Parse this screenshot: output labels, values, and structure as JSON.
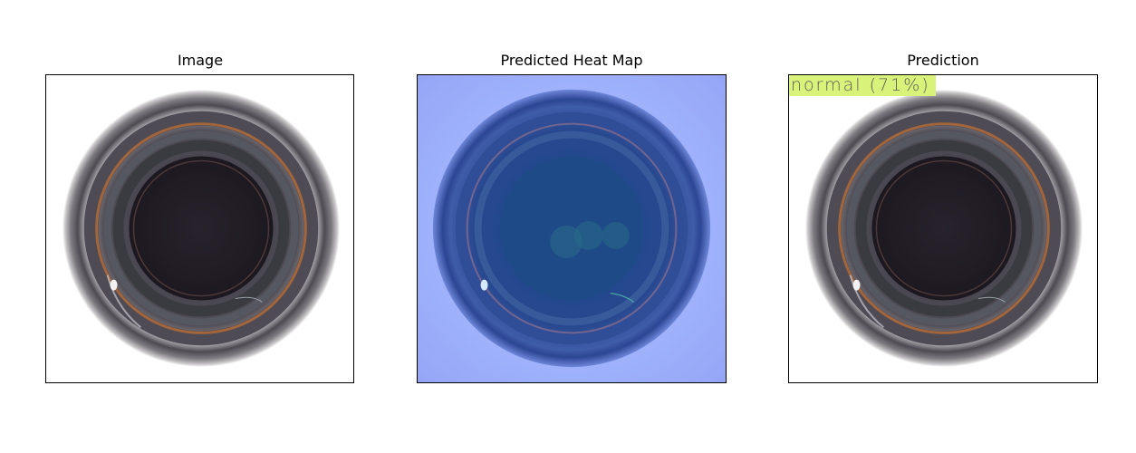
{
  "panels": {
    "image": {
      "title": "Image"
    },
    "heatmap": {
      "title": "Predicted Heat Map"
    },
    "prediction": {
      "title": "Prediction",
      "label": "normal (71%)",
      "label_color": "#d9f27a"
    }
  },
  "colors": {
    "heatmap_background": "#96a6f7",
    "heatmap_center": "#1c3f8f",
    "bottle_dark": "#241f2a",
    "copper_ring": "#b26a37"
  }
}
